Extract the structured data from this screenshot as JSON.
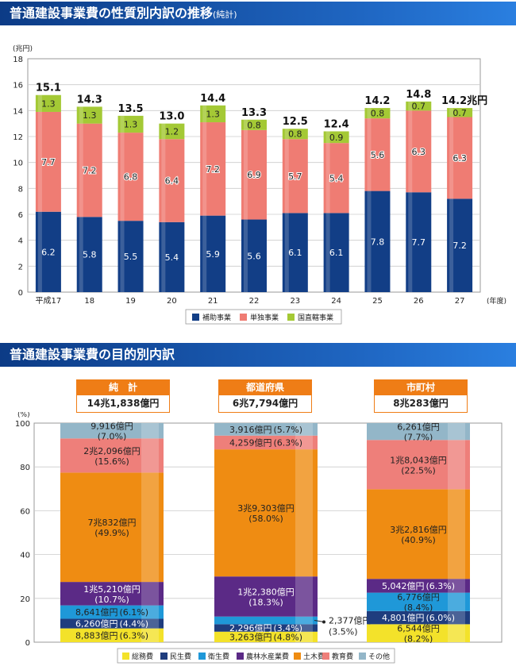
{
  "section1": {
    "title": "普通建設事業費の性質別内訳の推移",
    "title_note": "(純計)"
  },
  "section2": {
    "title": "普通建設事業費の目的別内訳"
  },
  "chart_data": [
    {
      "type": "bar",
      "stacked": true,
      "title": "普通建設事業費の性質別内訳の推移(純計)",
      "yunit": "(兆円)",
      "xunit": "(年度)",
      "ylim": [
        0,
        18
      ],
      "yticks": [
        0,
        2,
        4,
        6,
        8,
        10,
        12,
        14,
        16,
        18
      ],
      "grid": true,
      "legend_position": "bottom",
      "categories": [
        "平成17",
        "18",
        "19",
        "20",
        "21",
        "22",
        "23",
        "24",
        "25",
        "26",
        "27"
      ],
      "totals": [
        "15.1",
        "14.3",
        "13.5",
        "13.0",
        "14.4",
        "13.3",
        "12.5",
        "12.4",
        "14.2",
        "14.8",
        "14.2兆円"
      ],
      "total_values": [
        15.1,
        14.3,
        13.5,
        13.0,
        14.4,
        13.3,
        12.5,
        12.4,
        14.2,
        14.8,
        14.2
      ],
      "series": [
        {
          "name": "補助事業",
          "color": "#123e86",
          "values": [
            6.2,
            5.8,
            5.5,
            5.4,
            5.9,
            5.6,
            6.1,
            6.1,
            7.8,
            7.7,
            7.2
          ]
        },
        {
          "name": "単独事業",
          "color": "#ef7c73",
          "values": [
            7.7,
            7.2,
            6.8,
            6.4,
            7.2,
            6.9,
            5.7,
            5.4,
            5.6,
            6.3,
            6.3
          ]
        },
        {
          "name": "国直轄事業",
          "color": "#a4c935",
          "values": [
            1.3,
            1.3,
            1.3,
            1.2,
            1.3,
            0.8,
            0.8,
            0.9,
            0.8,
            0.7,
            0.7
          ]
        }
      ]
    },
    {
      "type": "bar",
      "stacked": true,
      "percent": true,
      "title": "普通建設事業費の目的別内訳",
      "yunit": "(%)",
      "ylim": [
        0,
        100
      ],
      "yticks": [
        0,
        20,
        40,
        60,
        80,
        100
      ],
      "grid": true,
      "legend_position": "bottom",
      "columns": [
        {
          "name": "純　計",
          "total": "14兆1,838億円"
        },
        {
          "name": "都道府県",
          "total": "6兆7,794億円"
        },
        {
          "name": "市町村",
          "total": "8兆283億円"
        }
      ],
      "series": [
        {
          "name": "総務費",
          "color": "#f3e22a",
          "values": [
            6.3,
            4.8,
            8.2
          ],
          "labels": [
            "8,883億円",
            "3,263億円",
            "6,544億円"
          ],
          "pct_labels": [
            "(6.3%)",
            "(4.8%)",
            "(8.2%)"
          ]
        },
        {
          "name": "民生費",
          "color": "#1f3d7e",
          "values": [
            4.4,
            3.4,
            6.0
          ],
          "labels": [
            "6,260億円",
            "2,296億円",
            "4,801億円"
          ],
          "pct_labels": [
            "(4.4%)",
            "(3.4%)",
            "(6.0%)"
          ]
        },
        {
          "name": "衛生費",
          "color": "#1f98d8",
          "values": [
            6.1,
            3.5,
            8.4
          ],
          "labels": [
            "8,641億円",
            "2,377億円",
            "6,776億円"
          ],
          "pct_labels": [
            "(6.1%)",
            "(3.5%)",
            "(8.4%)"
          ]
        },
        {
          "name": "農林水産業費",
          "color": "#5b2a86",
          "values": [
            10.7,
            18.3,
            6.3
          ],
          "labels": [
            "1兆5,210億円",
            "1兆2,380億円",
            "5,042億円"
          ],
          "pct_labels": [
            "(10.7%)",
            "(18.3%)",
            "(6.3%)"
          ]
        },
        {
          "name": "土木費",
          "color": "#ef8c12",
          "values": [
            49.9,
            58.0,
            40.9
          ],
          "labels": [
            "7兆832億円",
            "3兆9,303億円",
            "3兆2,816億円"
          ],
          "pct_labels": [
            "(49.9%)",
            "(58.0%)",
            "(40.9%)"
          ]
        },
        {
          "name": "教育費",
          "color": "#ee7f7a",
          "values": [
            15.6,
            6.3,
            22.5
          ],
          "labels": [
            "2兆2,096億円",
            "4,259億円",
            "1兆8,043億円"
          ],
          "pct_labels": [
            "(15.6%)",
            "(6.3%)",
            "(22.5%)"
          ]
        },
        {
          "name": "その他",
          "color": "#93b6c8",
          "values": [
            7.0,
            5.7,
            7.7
          ],
          "labels": [
            "9,916億円",
            "3,916億円",
            "6,261億円"
          ],
          "pct_labels": [
            "(7.0%)",
            "(5.7%)",
            "(7.7%)"
          ]
        }
      ]
    }
  ]
}
